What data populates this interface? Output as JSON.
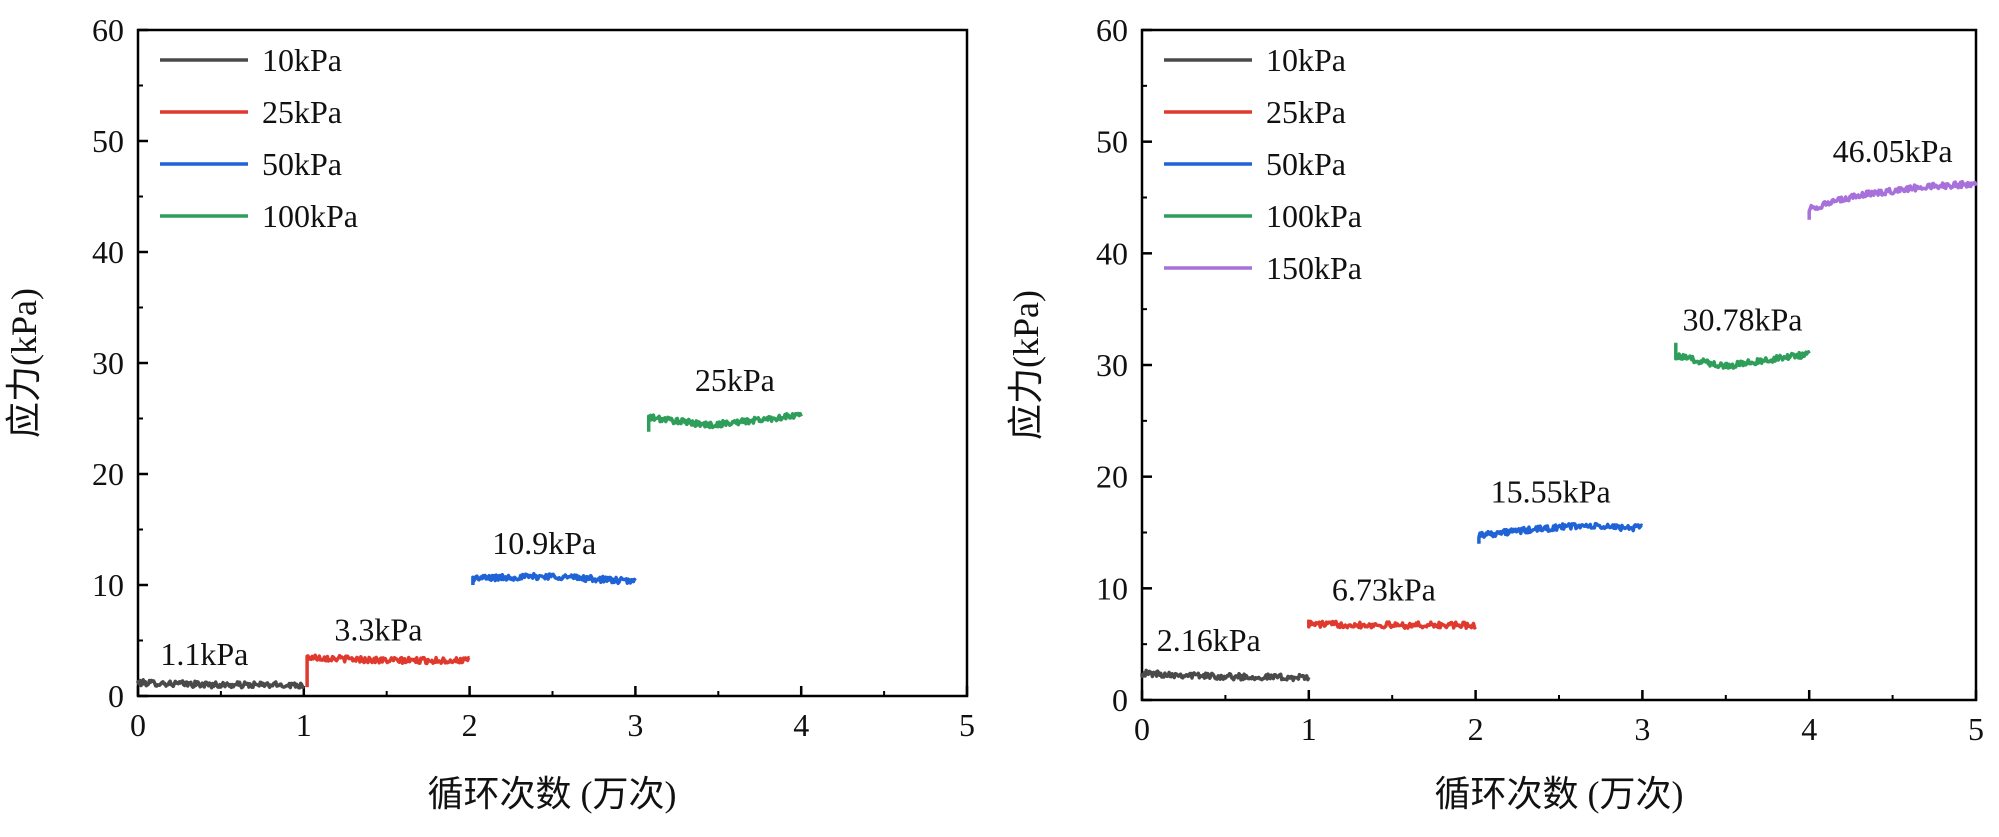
{
  "chart_data": [
    {
      "type": "line",
      "xlabel": "循环次数 (万次)",
      "ylabel": "应力(kPa)",
      "xlim": [
        0,
        5
      ],
      "ylim": [
        0,
        60
      ],
      "x_ticks": [
        0,
        1,
        2,
        3,
        4,
        5
      ],
      "y_ticks": [
        0,
        10,
        20,
        30,
        40,
        50,
        60
      ],
      "grid": false,
      "legend_position": "top-left",
      "series": [
        {
          "name": "10kPa",
          "color": "#4a4a4a",
          "x_range": [
            0,
            1
          ],
          "start": 1.2,
          "points": [
            [
              0,
              1.2
            ],
            [
              0.5,
              1.0
            ],
            [
              1,
              1.0
            ]
          ],
          "label": "1.1kPa",
          "label_at": [
            0.4,
            2.8
          ]
        },
        {
          "name": "25kPa",
          "color": "#e0392e",
          "x_range": [
            1.02,
            2
          ],
          "start": 0.8,
          "points": [
            [
              1.02,
              3.5
            ],
            [
              1.5,
              3.2
            ],
            [
              2,
              3.2
            ]
          ],
          "label": "3.3kPa",
          "label_at": [
            1.45,
            5.0
          ]
        },
        {
          "name": "50kPa",
          "color": "#1f63d6",
          "x_range": [
            2.02,
            3
          ],
          "start": 10.0,
          "points": [
            [
              2.02,
              10.6
            ],
            [
              2.5,
              10.8
            ],
            [
              3,
              10.3
            ]
          ],
          "label": "10.9kPa",
          "label_at": [
            2.45,
            12.8
          ]
        },
        {
          "name": "100kPa",
          "color": "#2e9e5a",
          "x_range": [
            3.08,
            4
          ],
          "start": 23.8,
          "points": [
            [
              3.08,
              25.1
            ],
            [
              3.45,
              24.4
            ],
            [
              4,
              25.3
            ]
          ],
          "label": "25kPa",
          "label_at": [
            3.6,
            27.5
          ]
        }
      ]
    },
    {
      "type": "line",
      "xlabel": "循环次数 (万次)",
      "ylabel": "应力(kPa)",
      "xlim": [
        0,
        5
      ],
      "ylim": [
        0,
        60
      ],
      "x_ticks": [
        0,
        1,
        2,
        3,
        4,
        5
      ],
      "y_ticks": [
        0,
        10,
        20,
        30,
        40,
        50,
        60
      ],
      "grid": false,
      "legend_position": "top-left",
      "series": [
        {
          "name": "10kPa",
          "color": "#4a4a4a",
          "x_range": [
            0,
            1
          ],
          "start": 2.4,
          "points": [
            [
              0,
              2.4
            ],
            [
              0.5,
              2.1
            ],
            [
              1,
              2.0
            ]
          ],
          "label": "2.16kPa",
          "label_at": [
            0.4,
            4.4
          ]
        },
        {
          "name": "25kPa",
          "color": "#e0392e",
          "x_range": [
            1.0,
            2
          ],
          "start": 7.2,
          "points": [
            [
              1.0,
              6.8
            ],
            [
              1.5,
              6.7
            ],
            [
              2,
              6.7
            ]
          ],
          "label": "6.73kPa",
          "label_at": [
            1.45,
            8.9
          ]
        },
        {
          "name": "50kPa",
          "color": "#1f63d6",
          "x_range": [
            2.02,
            3
          ],
          "start": 14.0,
          "points": [
            [
              2.02,
              14.8
            ],
            [
              2.6,
              15.6
            ],
            [
              3,
              15.4
            ]
          ],
          "label": "15.55kPa",
          "label_at": [
            2.45,
            17.7
          ]
        },
        {
          "name": "100kPa",
          "color": "#2e9e5a",
          "x_range": [
            3.2,
            4
          ],
          "start": 32.0,
          "points": [
            [
              3.2,
              30.8
            ],
            [
              3.5,
              29.9
            ],
            [
              4,
              31.0
            ]
          ],
          "label": "30.78kPa",
          "label_at": [
            3.6,
            33.1
          ]
        },
        {
          "name": "150kPa",
          "color": "#a770db",
          "x_range": [
            4.0,
            5
          ],
          "start": 43.0,
          "points": [
            [
              4.0,
              44.0
            ],
            [
              4.3,
              45.2
            ],
            [
              4.7,
              46.0
            ],
            [
              5,
              46.2
            ]
          ],
          "label": "46.05kPa",
          "label_at": [
            4.5,
            48.2
          ]
        }
      ]
    }
  ]
}
